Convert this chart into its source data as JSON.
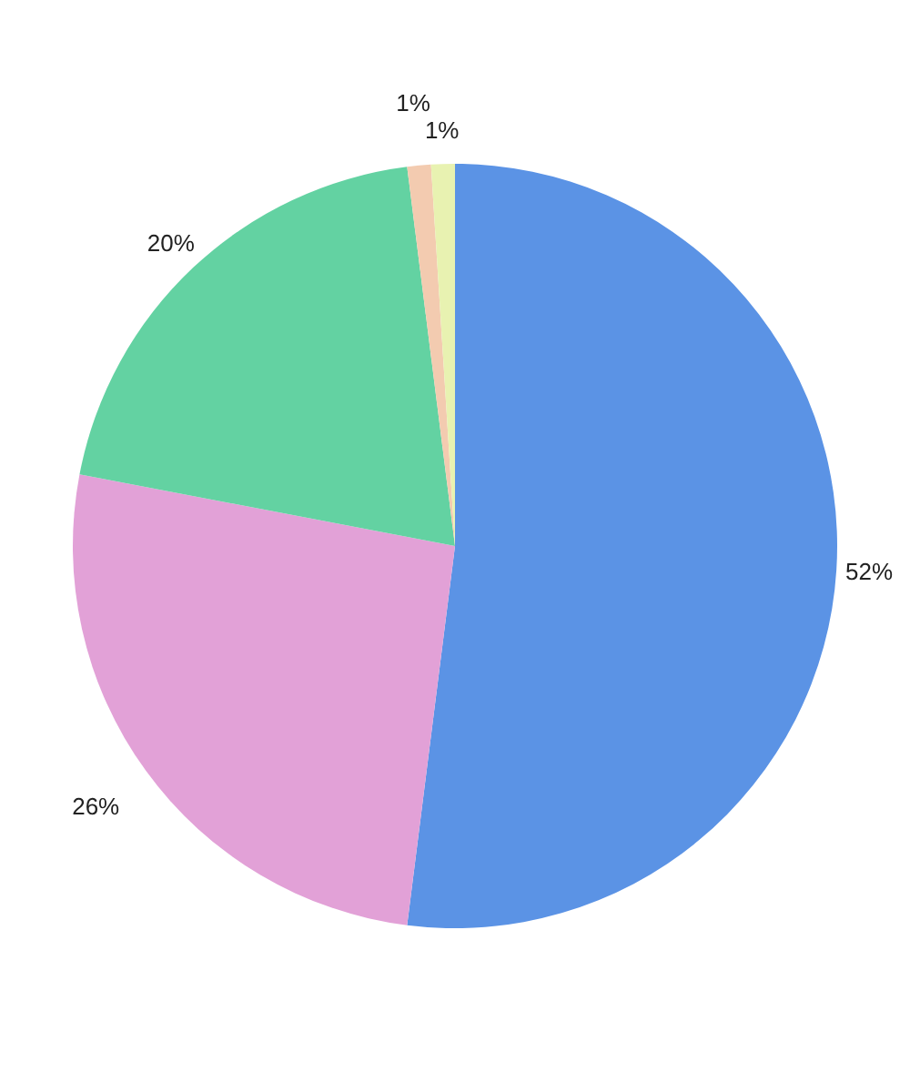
{
  "chart_data": {
    "type": "pie",
    "categories": [
      null,
      null,
      null,
      null,
      null
    ],
    "values": [
      52,
      26,
      20,
      1,
      1
    ],
    "colors": [
      "#5b93e5",
      "#e2a1d7",
      "#63d2a2",
      "#f3cbb0",
      "#e8f2b1"
    ],
    "value_labels": [
      "52%",
      "26%",
      "20%",
      "1%",
      "1%"
    ]
  }
}
